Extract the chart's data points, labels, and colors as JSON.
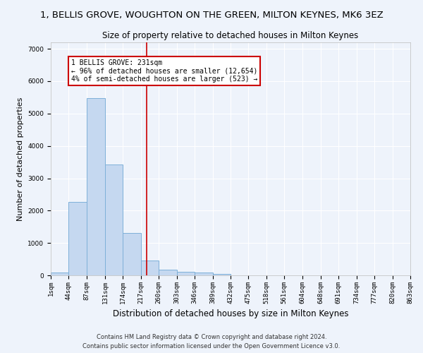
{
  "title": "1, BELLIS GROVE, WOUGHTON ON THE GREEN, MILTON KEYNES, MK6 3EZ",
  "subtitle": "Size of property relative to detached houses in Milton Keynes",
  "xlabel": "Distribution of detached houses by size in Milton Keynes",
  "ylabel": "Number of detached properties",
  "bar_color": "#c5d8f0",
  "bar_edge_color": "#7eb0d9",
  "background_color": "#eef3fb",
  "grid_color": "#ffffff",
  "property_line_x": 231,
  "annotation_text": "1 BELLIS GROVE: 231sqm\n← 96% of detached houses are smaller (12,654)\n4% of semi-detached houses are larger (523) →",
  "annotation_box_facecolor": "#ffffff",
  "annotation_box_edgecolor": "#cc0000",
  "footer_line1": "Contains HM Land Registry data © Crown copyright and database right 2024.",
  "footer_line2": "Contains public sector information licensed under the Open Government Licence v3.0.",
  "bin_edges": [
    1,
    44,
    87,
    131,
    174,
    217,
    260,
    303,
    346,
    389,
    432,
    475,
    518,
    561,
    604,
    648,
    691,
    734,
    777,
    820,
    863
  ],
  "bin_heights": [
    90,
    2270,
    5470,
    3430,
    1310,
    460,
    165,
    110,
    80,
    45,
    0,
    0,
    0,
    0,
    0,
    0,
    0,
    0,
    0,
    0
  ],
  "ylim": [
    0,
    7200
  ],
  "yticks": [
    0,
    1000,
    2000,
    3000,
    4000,
    5000,
    6000,
    7000
  ],
  "title_fontsize": 9.5,
  "subtitle_fontsize": 8.5,
  "tick_label_fontsize": 6.5,
  "ylabel_fontsize": 8,
  "xlabel_fontsize": 8.5,
  "annotation_fontsize": 7,
  "footer_fontsize": 6
}
